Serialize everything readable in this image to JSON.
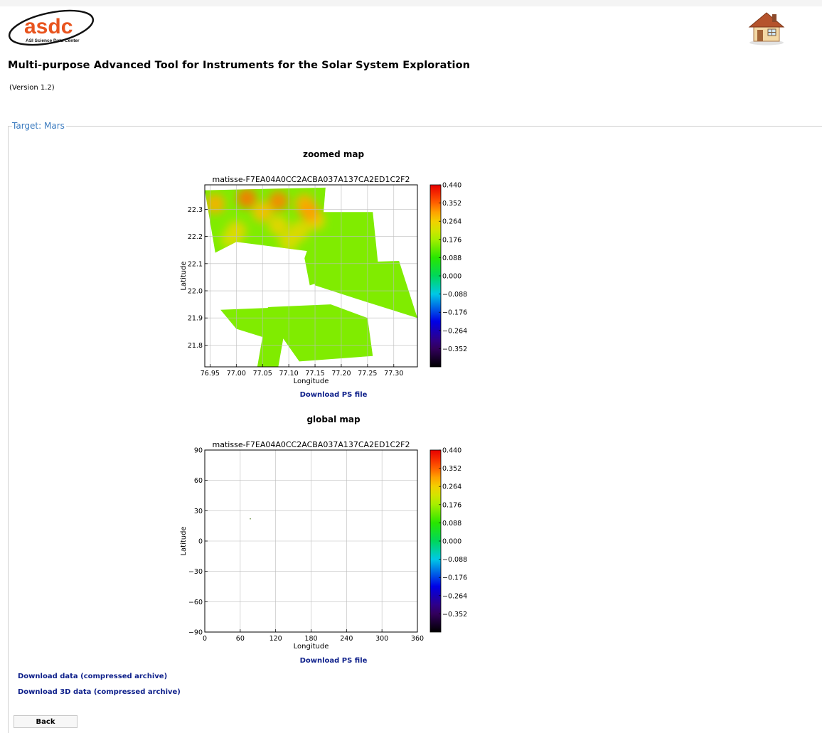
{
  "logo": {
    "text": "asdc",
    "subtitle": "ASI Science Data Center",
    "color": "#e8541e"
  },
  "home": {
    "icon": "home-icon"
  },
  "app": {
    "title": "Multi-purpose Advanced Tool for Instruments for the Solar System Exploration",
    "version": "(Version 1.2)"
  },
  "target": {
    "legend": "Target: Mars"
  },
  "zoomed": {
    "section_title": "zoomed map",
    "download_ps": "Download PS file"
  },
  "global": {
    "section_title": "global map",
    "download_ps": "Download PS file"
  },
  "downloads": {
    "data": "Download data (compressed archive)",
    "data3d": "Download 3D data (compressed archive)"
  },
  "back_label": "Back",
  "chart_data": [
    {
      "type": "heatmap",
      "title": "matisse-F7EA04A0CC2ACBA037A137CA2ED1C2F2",
      "xlabel": "Longitude",
      "ylabel": "Latitude",
      "xlim": [
        76.94,
        77.345
      ],
      "ylim": [
        21.72,
        22.39
      ],
      "x_ticks": [
        "76.95",
        "77.00",
        "77.05",
        "77.10",
        "77.15",
        "77.20",
        "77.25",
        "77.30"
      ],
      "x_tick_values": [
        76.95,
        77.0,
        77.05,
        77.1,
        77.15,
        77.2,
        77.25,
        77.3
      ],
      "y_ticks": [
        "21.8",
        "21.9",
        "22.0",
        "22.1",
        "22.2",
        "22.3"
      ],
      "y_tick_values": [
        21.8,
        21.9,
        22.0,
        22.1,
        22.2,
        22.3
      ],
      "grid": true,
      "colorbar": {
        "min": -0.44,
        "max": 0.44,
        "ticks": [
          "0.440",
          "0.352",
          "0.264",
          "0.176",
          "0.088",
          "0.000",
          "−0.088",
          "−0.176",
          "−0.264",
          "−0.352"
        ],
        "tick_values": [
          0.44,
          0.352,
          0.264,
          0.176,
          0.088,
          0.0,
          -0.088,
          -0.176,
          -0.264,
          -0.352
        ]
      },
      "footprints": [
        [
          [
            76.94,
            22.37
          ],
          [
            77.17,
            22.38
          ],
          [
            77.16,
            22.14
          ],
          [
            77.0,
            22.18
          ],
          [
            76.96,
            22.14
          ]
        ],
        [
          [
            77.16,
            22.29
          ],
          [
            77.26,
            22.29
          ],
          [
            77.27,
            22.1
          ],
          [
            77.14,
            22.02
          ],
          [
            77.13,
            22.12
          ]
        ],
        [
          [
            77.14,
            22.1
          ],
          [
            77.31,
            22.11
          ],
          [
            77.345,
            21.9
          ],
          [
            77.23,
            21.97
          ],
          [
            77.15,
            22.02
          ]
        ],
        [
          [
            77.06,
            21.94
          ],
          [
            77.18,
            21.95
          ],
          [
            77.25,
            21.9
          ],
          [
            77.26,
            21.76
          ],
          [
            77.12,
            21.74
          ],
          [
            77.08,
            21.85
          ]
        ],
        [
          [
            76.97,
            21.93
          ],
          [
            77.1,
            21.94
          ],
          [
            77.08,
            21.72
          ],
          [
            77.04,
            21.72
          ],
          [
            77.05,
            21.83
          ],
          [
            77.0,
            21.86
          ]
        ]
      ],
      "hotspots": [
        [
          76.96,
          22.32,
          0.3
        ],
        [
          77.02,
          22.34,
          0.34
        ],
        [
          77.08,
          22.33,
          0.33
        ],
        [
          77.13,
          22.32,
          0.3
        ],
        [
          77.15,
          22.26,
          0.27
        ],
        [
          77.0,
          22.22,
          0.26
        ],
        [
          77.12,
          22.22,
          0.25
        ],
        [
          77.05,
          22.29,
          0.29
        ],
        [
          77.1,
          22.18,
          0.24
        ],
        [
          76.99,
          22.19,
          0.23
        ],
        [
          77.08,
          22.24,
          0.26
        ],
        [
          77.14,
          22.29,
          0.31
        ]
      ],
      "base_value": 0.15
    },
    {
      "type": "scatter",
      "title": "matisse-F7EA04A0CC2ACBA037A137CA2ED1C2F2",
      "xlabel": "Longitude",
      "ylabel": "Latitude",
      "xlim": [
        0,
        360
      ],
      "ylim": [
        -90,
        90
      ],
      "x_ticks": [
        "0",
        "60",
        "120",
        "180",
        "240",
        "300",
        "360"
      ],
      "x_tick_values": [
        0,
        60,
        120,
        180,
        240,
        300,
        360
      ],
      "y_ticks": [
        "90",
        "60",
        "30",
        "0",
        "−30",
        "−60",
        "−90"
      ],
      "y_tick_values": [
        90,
        60,
        30,
        0,
        -30,
        -60,
        -90
      ],
      "grid": true,
      "points": [
        [
          77.1,
          22.0
        ]
      ],
      "colorbar": {
        "min": -0.44,
        "max": 0.44,
        "ticks": [
          "0.440",
          "0.352",
          "0.264",
          "0.176",
          "0.088",
          "0.000",
          "−0.088",
          "−0.176",
          "−0.264",
          "−0.352"
        ],
        "tick_values": [
          0.44,
          0.352,
          0.264,
          0.176,
          0.088,
          0.0,
          -0.088,
          -0.176,
          -0.264,
          -0.352
        ]
      }
    }
  ]
}
